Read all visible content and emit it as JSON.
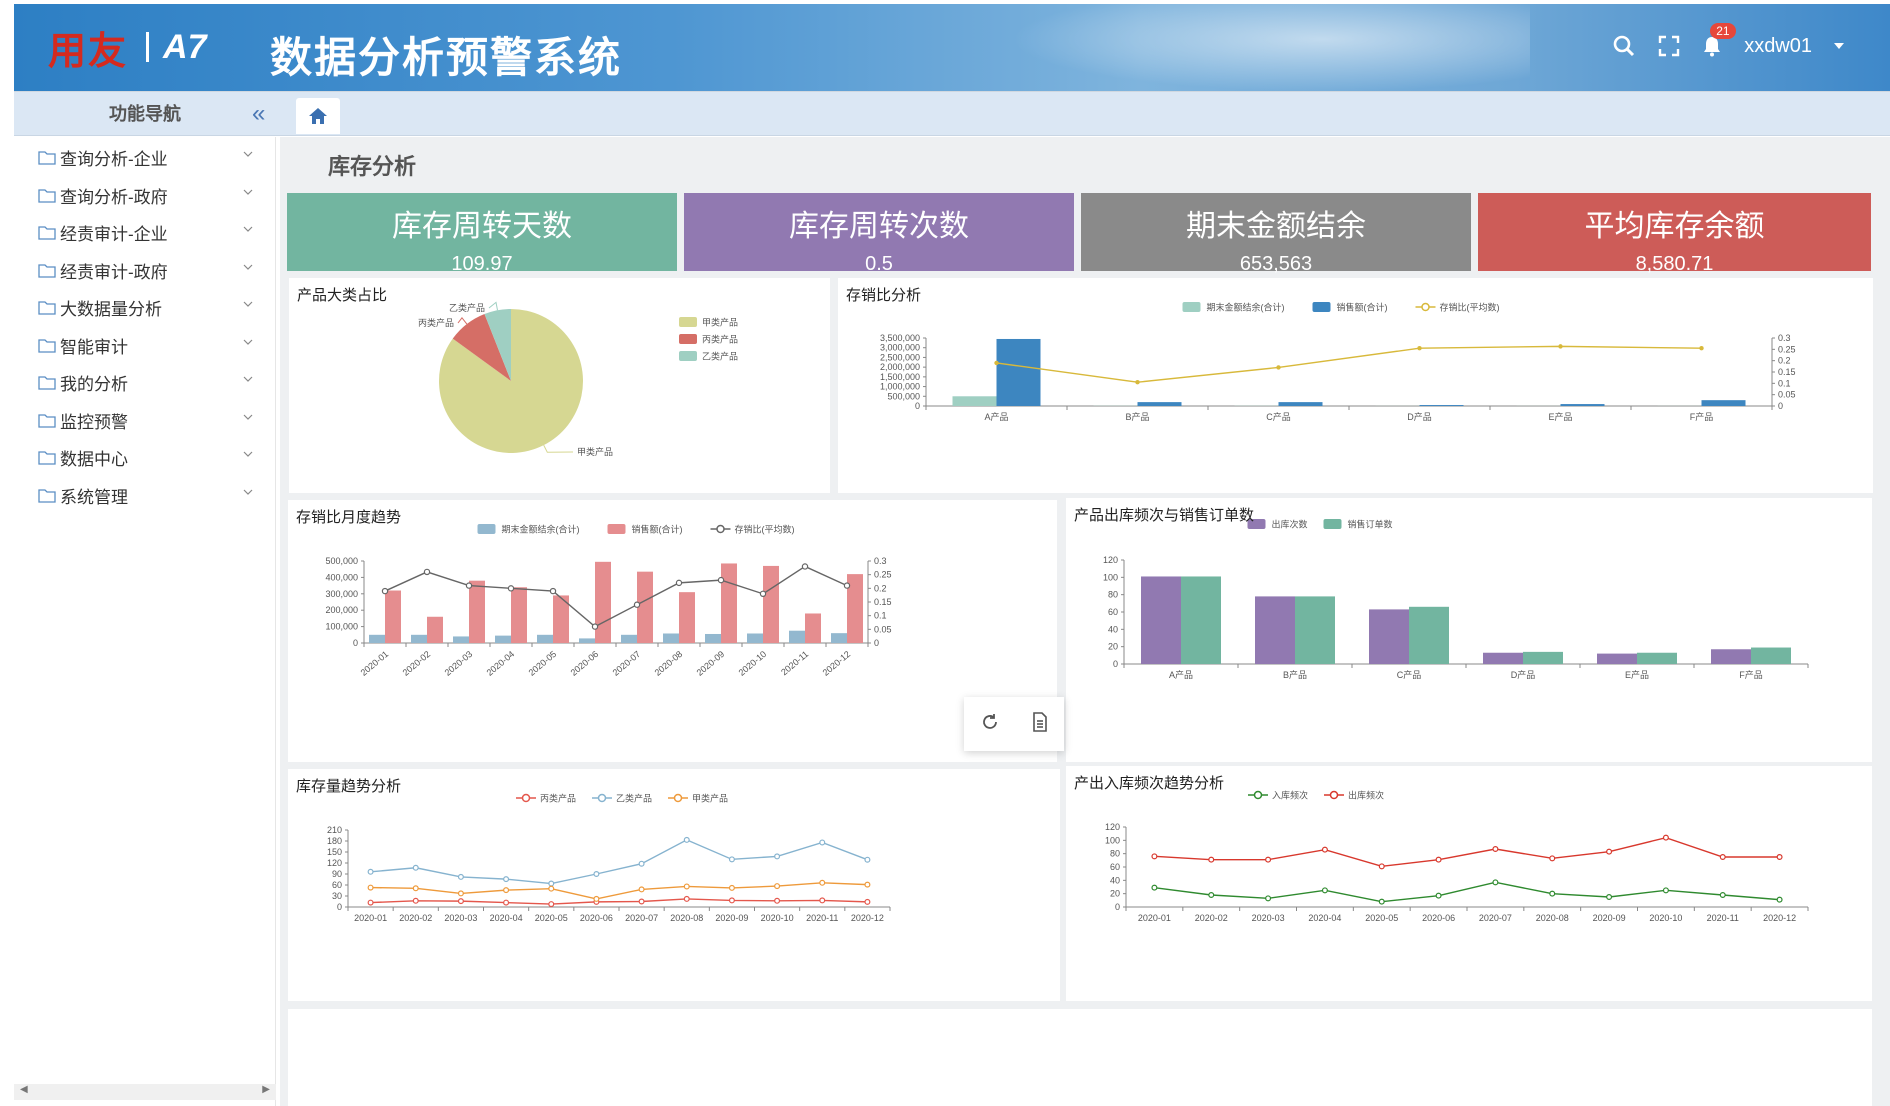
{
  "header": {
    "brand": "用友",
    "version": "A7",
    "title": "数据分析预警系统",
    "notification_count": "21",
    "user": "xxdw01"
  },
  "navbar": {
    "title": "功能导航"
  },
  "sidebar": {
    "items": [
      {
        "label": "查询分析-企业"
      },
      {
        "label": "查询分析-政府"
      },
      {
        "label": "经责审计-企业"
      },
      {
        "label": "经责审计-政府"
      },
      {
        "label": "大数据量分析"
      },
      {
        "label": "智能审计"
      },
      {
        "label": "我的分析"
      },
      {
        "label": "监控预警"
      },
      {
        "label": "数据中心"
      },
      {
        "label": "系统管理"
      }
    ]
  },
  "page": {
    "title": "库存分析"
  },
  "kpis": [
    {
      "label": "库存周转天数",
      "value": "109.97",
      "color": "#72b5a0"
    },
    {
      "label": "库存周转次数",
      "value": "0.5",
      "color": "#9179b1"
    },
    {
      "label": "期末金额结余",
      "value": "653,563",
      "color": "#8a8a8a"
    },
    {
      "label": "平均库存余额",
      "value": "8,580.71",
      "color": "#cd5c58"
    }
  ],
  "panels": {
    "pie": "产品大类占比",
    "ratio": "存销比分析",
    "monthly": "存销比月度趋势",
    "freq": "产品出库频次与销售订单数",
    "stock": "库存量趋势分析",
    "inout": "产出入库频次趋势分析"
  },
  "chart_data": [
    {
      "type": "pie",
      "title": "产品大类占比",
      "categories": [
        "甲类产品",
        "丙类产品",
        "乙类产品"
      ],
      "values": [
        85,
        9,
        6
      ],
      "legend": [
        "甲类产品",
        "丙类产品",
        "乙类产品"
      ],
      "colors": [
        "#d6d792",
        "#d56e66",
        "#9fcfc2"
      ]
    },
    {
      "type": "bar",
      "title": "存销比分析",
      "categories": [
        "A产品",
        "B产品",
        "C产品",
        "D产品",
        "E产品",
        "F产品"
      ],
      "series": [
        {
          "name": "期末金额结余(合计)",
          "type": "bar",
          "values": [
            500000,
            10000,
            10000,
            5000,
            5000,
            5000
          ],
          "color": "#9fcfc2"
        },
        {
          "name": "销售额(合计)",
          "type": "bar",
          "values": [
            3450000,
            200000,
            200000,
            50000,
            100000,
            300000
          ],
          "color": "#3d86c0"
        },
        {
          "name": "存销比(平均数)",
          "type": "line",
          "axis": "right",
          "values": [
            0.19,
            0.105,
            0.17,
            0.255,
            0.263,
            0.255
          ],
          "color": "#d8b93b"
        }
      ],
      "yticks": [
        "0",
        "500,000",
        "1,000,000",
        "1,500,000",
        "2,000,000",
        "2,500,000",
        "3,000,000",
        "3,500,000"
      ],
      "y2ticks": [
        "0",
        "0.05",
        "0.1",
        "0.15",
        "0.2",
        "0.25",
        "0.3"
      ],
      "ylim": [
        0,
        3500000
      ],
      "y2lim": [
        0,
        0.3
      ]
    },
    {
      "type": "bar",
      "title": "存销比月度趋势",
      "categories": [
        "2020-01",
        "2020-02",
        "2020-03",
        "2020-04",
        "2020-05",
        "2020-06",
        "2020-07",
        "2020-08",
        "2020-09",
        "2020-10",
        "2020-11",
        "2020-12"
      ],
      "series": [
        {
          "name": "期末金额结余(合计)",
          "type": "bar",
          "values": [
            50000,
            50000,
            40000,
            45000,
            50000,
            28000,
            50000,
            58000,
            55000,
            58000,
            75000,
            60000
          ],
          "color": "#93b8cf"
        },
        {
          "name": "销售额(合计)",
          "type": "bar",
          "values": [
            320000,
            160000,
            380000,
            340000,
            290000,
            495000,
            435000,
            310000,
            485000,
            470000,
            180000,
            420000
          ],
          "color": "#e58d8f"
        },
        {
          "name": "存销比(平均数)",
          "type": "line",
          "axis": "right",
          "values": [
            0.19,
            0.26,
            0.21,
            0.2,
            0.19,
            0.06,
            0.14,
            0.22,
            0.23,
            0.18,
            0.28,
            0.21
          ],
          "color": "#666666"
        }
      ],
      "yticks": [
        "0",
        "100,000",
        "200,000",
        "300,000",
        "400,000",
        "500,000"
      ],
      "y2ticks": [
        "0",
        "0.05",
        "0.1",
        "0.15",
        "0.2",
        "0.25",
        "0.3"
      ],
      "ylim": [
        0,
        500000
      ],
      "y2lim": [
        0,
        0.3
      ]
    },
    {
      "type": "bar",
      "title": "产品出库频次与销售订单数",
      "categories": [
        "A产品",
        "B产品",
        "C产品",
        "D产品",
        "E产品",
        "F产品"
      ],
      "series": [
        {
          "name": "出库次数",
          "values": [
            101,
            78,
            63,
            13,
            12,
            17
          ],
          "color": "#9179b1"
        },
        {
          "name": "销售订单数",
          "values": [
            101,
            78,
            66,
            14,
            13,
            19
          ],
          "color": "#72b5a0"
        }
      ],
      "yticks": [
        "0",
        "20",
        "40",
        "60",
        "80",
        "100",
        "120"
      ],
      "ylim": [
        0,
        120
      ]
    },
    {
      "type": "line",
      "title": "库存量趋势分析",
      "categories": [
        "2020-01",
        "2020-02",
        "2020-03",
        "2020-04",
        "2020-05",
        "2020-06",
        "2020-07",
        "2020-08",
        "2020-09",
        "2020-10",
        "2020-11",
        "2020-12"
      ],
      "series": [
        {
          "name": "丙类产品",
          "values": [
            12,
            17,
            16,
            12,
            8,
            14,
            15,
            22,
            18,
            17,
            18,
            14
          ],
          "color": "#e4574c"
        },
        {
          "name": "乙类产品",
          "values": [
            96,
            107,
            82,
            76,
            64,
            90,
            118,
            183,
            130,
            138,
            176,
            129
          ],
          "color": "#86b3cf"
        },
        {
          "name": "甲类产品",
          "values": [
            53,
            51,
            37,
            46,
            50,
            22,
            48,
            56,
            52,
            57,
            66,
            61
          ],
          "color": "#ee9a3b"
        }
      ],
      "yticks": [
        "0",
        "30",
        "60",
        "90",
        "120",
        "150",
        "180",
        "210"
      ],
      "ylim": [
        0,
        210
      ]
    },
    {
      "type": "line",
      "title": "产出入库频次趋势分析",
      "categories": [
        "2020-01",
        "2020-02",
        "2020-03",
        "2020-04",
        "2020-05",
        "2020-06",
        "2020-07",
        "2020-08",
        "2020-09",
        "2020-10",
        "2020-11",
        "2020-12"
      ],
      "series": [
        {
          "name": "入库频次",
          "values": [
            29,
            18,
            13,
            25,
            8,
            17,
            37,
            20,
            15,
            25,
            18,
            11
          ],
          "color": "#2f8a2f"
        },
        {
          "name": "出库频次",
          "values": [
            76,
            71,
            71,
            86,
            61,
            71,
            87,
            73,
            83,
            104,
            75,
            75
          ],
          "color": "#d8382d"
        }
      ],
      "yticks": [
        "0",
        "20",
        "40",
        "60",
        "80",
        "100",
        "120"
      ],
      "ylim": [
        0,
        120
      ]
    }
  ]
}
